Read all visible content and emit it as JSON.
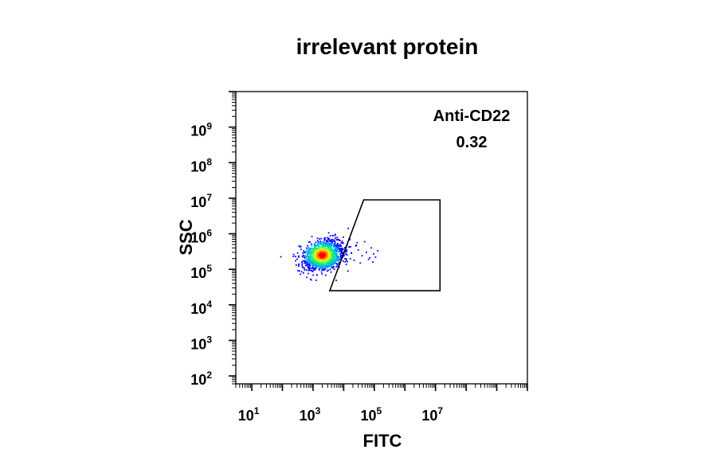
{
  "chart_data": {
    "type": "scatter",
    "title": "irrelevant protein",
    "xlabel": "FITC",
    "ylabel": "SSC",
    "x_scale": "log",
    "y_scale": "log",
    "xlim": [
      3,
      10000000000
    ],
    "ylim": [
      60,
      10000000000
    ],
    "x_tick_labels": [
      {
        "value": 10,
        "base": "10",
        "exp": "1"
      },
      {
        "value": 1000,
        "base": "10",
        "exp": "3"
      },
      {
        "value": 100000,
        "base": "10",
        "exp": "5"
      },
      {
        "value": 10000000,
        "base": "10",
        "exp": "7"
      }
    ],
    "y_tick_labels": [
      {
        "value": 100,
        "base": "10",
        "exp": "2"
      },
      {
        "value": 1000,
        "base": "10",
        "exp": "3"
      },
      {
        "value": 10000,
        "base": "10",
        "exp": "4"
      },
      {
        "value": 100000,
        "base": "10",
        "exp": "5"
      },
      {
        "value": 1000000,
        "base": "10",
        "exp": "6"
      },
      {
        "value": 10000000,
        "base": "10",
        "exp": "7"
      },
      {
        "value": 100000000,
        "base": "10",
        "exp": "8"
      },
      {
        "value": 1000000000,
        "base": "10",
        "exp": "9"
      }
    ],
    "gate": {
      "name": "Anti-CD22",
      "value": "0.32",
      "vertices": [
        [
          3500,
          25000
        ],
        [
          45000,
          9000000
        ],
        [
          14000000,
          9000000
        ],
        [
          14000000,
          25000
        ]
      ]
    },
    "population": {
      "center": [
        2000,
        250000
      ],
      "main_point_count": 1400,
      "outlier_points": [
        [
          18000,
          290000
        ],
        [
          22000,
          180000
        ],
        [
          30000,
          350000
        ],
        [
          40000,
          240000
        ],
        [
          55000,
          300000
        ],
        [
          65000,
          190000
        ],
        [
          80000,
          400000
        ],
        [
          95000,
          270000
        ],
        [
          110000,
          220000
        ],
        [
          130000,
          330000
        ],
        [
          48000,
          600000
        ],
        [
          35000,
          150000
        ],
        [
          26000,
          480000
        ],
        [
          70000,
          210000
        ],
        [
          90000,
          160000
        ],
        [
          15000,
          420000
        ]
      ]
    },
    "density_colors": [
      "#0000ff",
      "#00a0ff",
      "#00e0a0",
      "#60ff40",
      "#f0f000",
      "#ff8000",
      "#ff0000"
    ],
    "grid": false,
    "legend": "none"
  }
}
